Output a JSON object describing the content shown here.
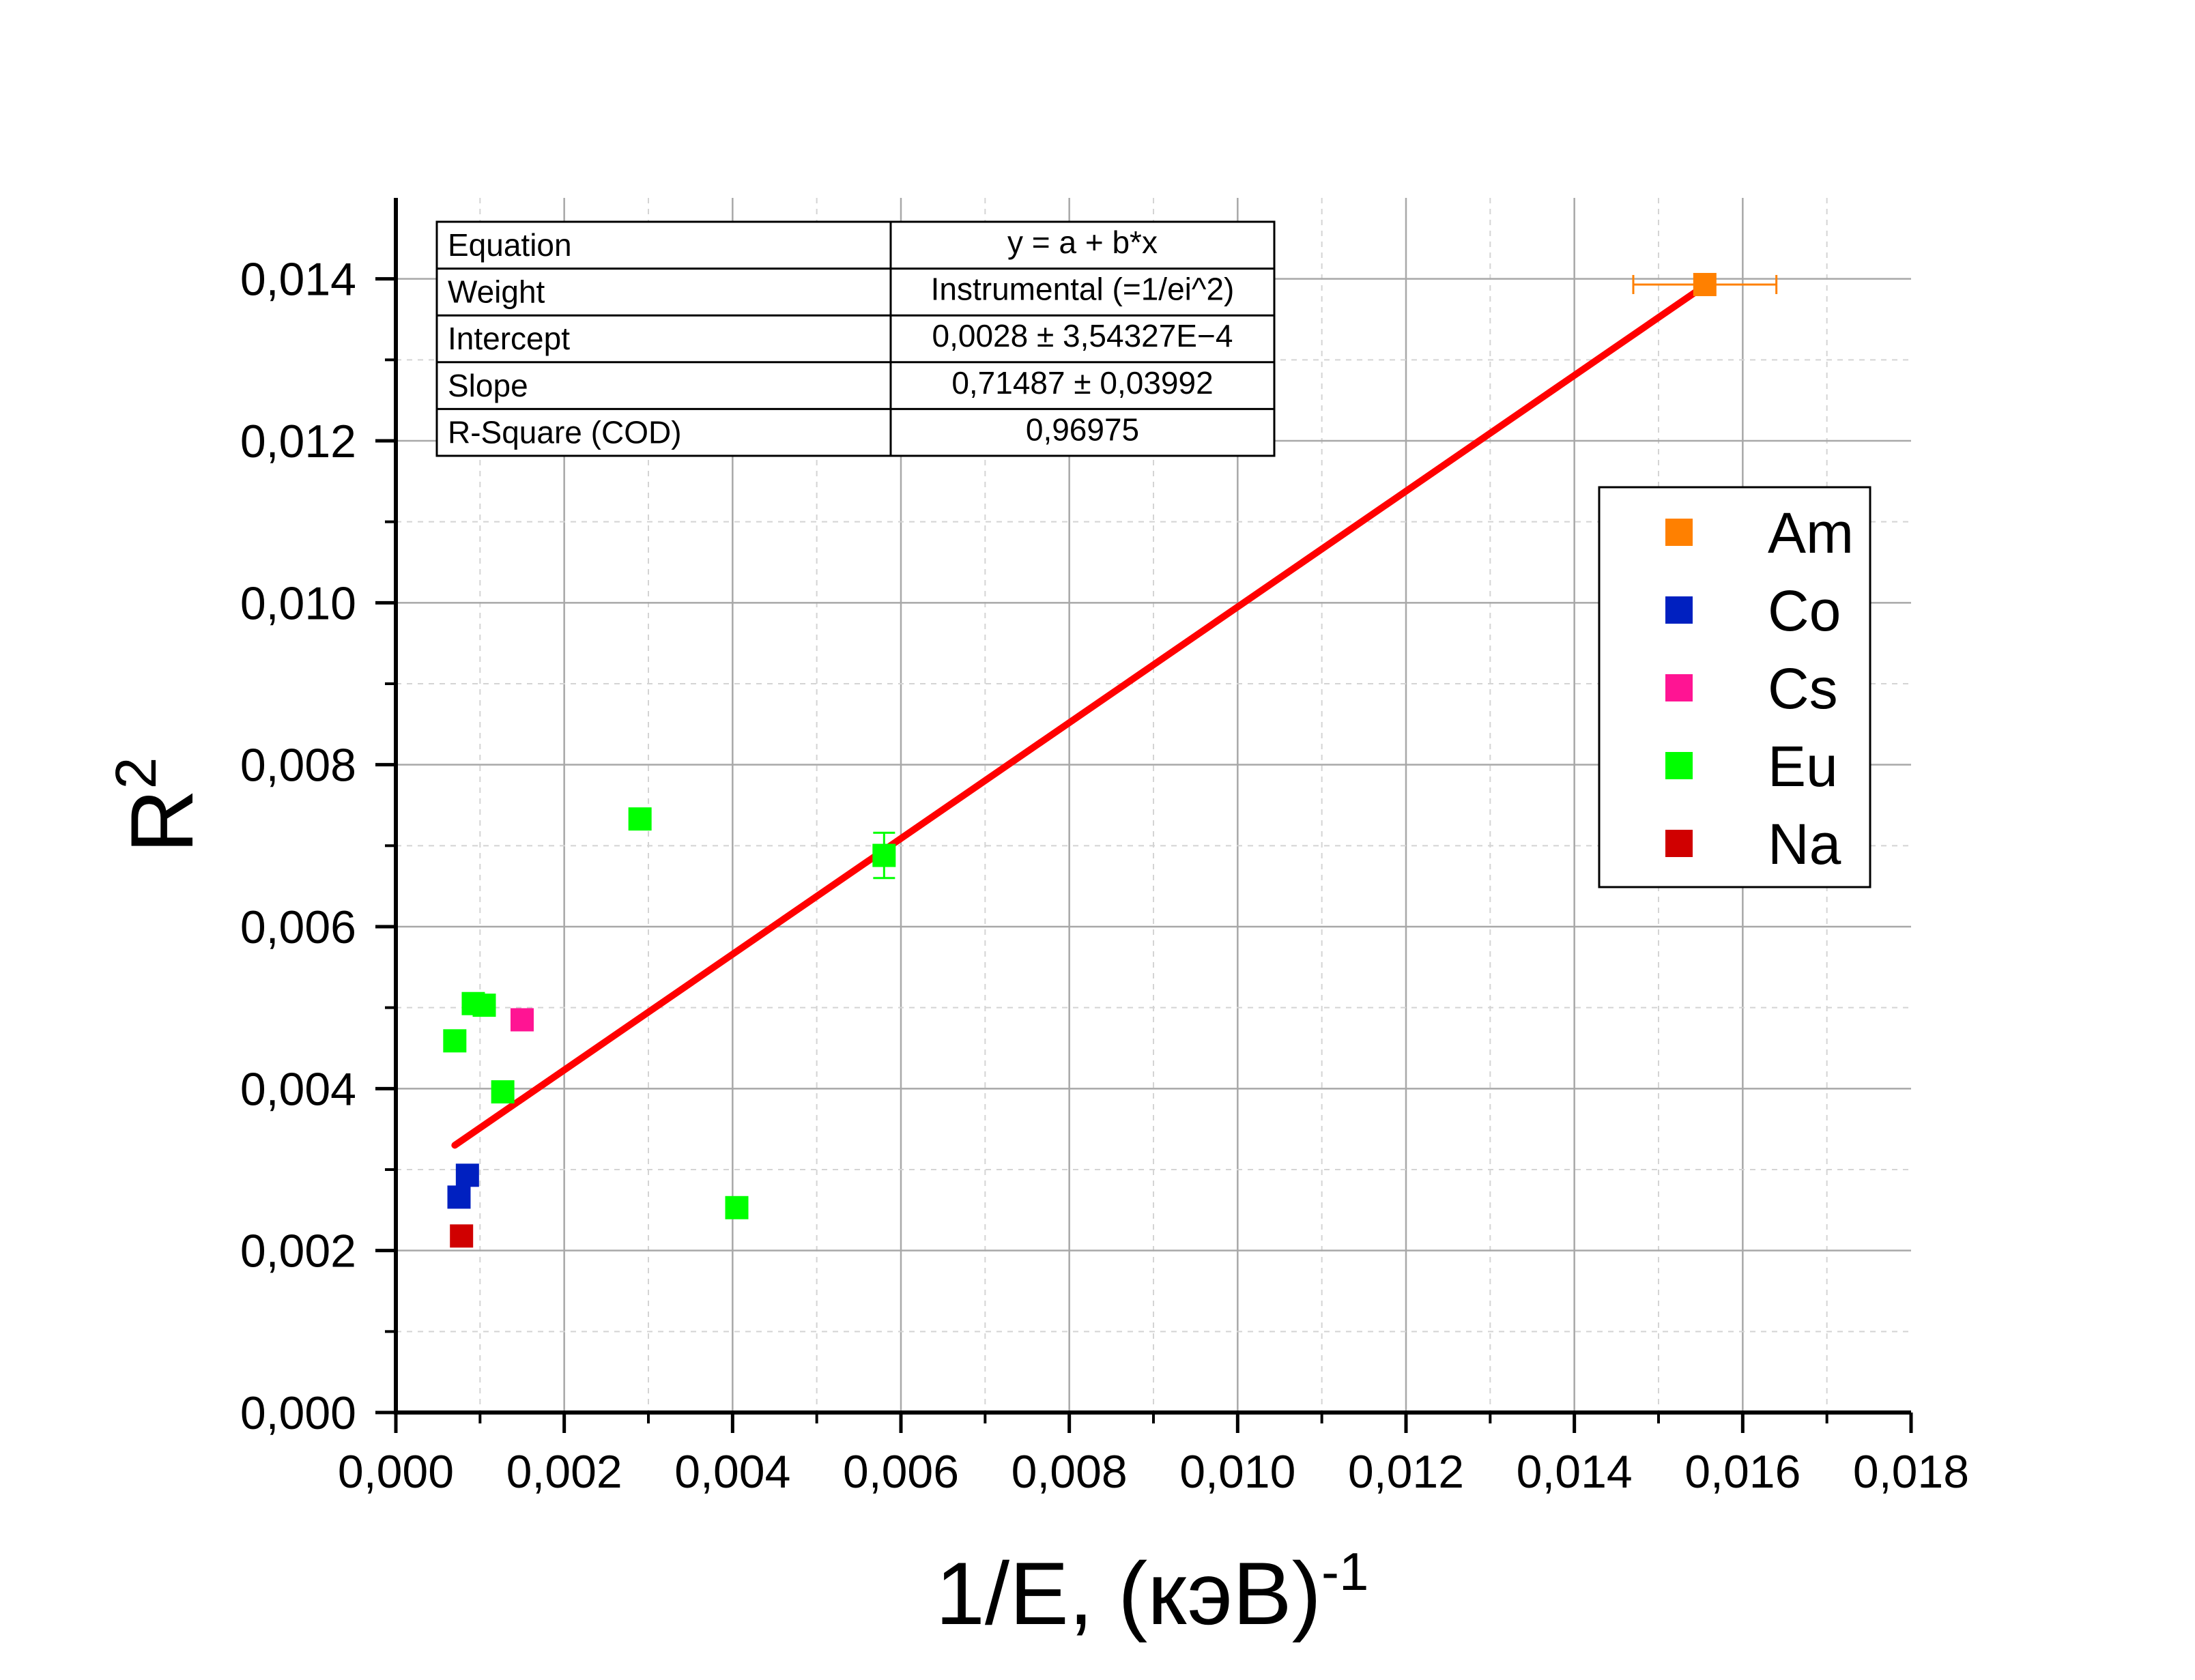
{
  "chart_data": {
    "type": "scatter",
    "xlabel": "1/E, (кэВ)",
    "xlabel_sup": "-1",
    "ylabel": "R",
    "ylabel_sup": "2",
    "xlim": [
      0,
      0.018
    ],
    "ylim": [
      0,
      0.015
    ],
    "x_ticks": [
      "0,000",
      "0,002",
      "0,004",
      "0,006",
      "0,008",
      "0,010",
      "0,012",
      "0,014",
      "0,016",
      "0,018"
    ],
    "y_ticks": [
      "0,000",
      "0,002",
      "0,004",
      "0,006",
      "0,008",
      "0,010",
      "0,012",
      "0,014"
    ],
    "grid": true,
    "legend_position": "right",
    "series": [
      {
        "name": "Am",
        "color": "#ff8000",
        "points": [
          {
            "x": 0.01555,
            "y": 0.01393,
            "xerr": 0.00085
          }
        ]
      },
      {
        "name": "Co",
        "color": "#0020c0",
        "points": [
          {
            "x": 0.00075,
            "y": 0.00266
          },
          {
            "x": 0.00085,
            "y": 0.00293
          }
        ]
      },
      {
        "name": "Cs",
        "color": "#ff1493",
        "points": [
          {
            "x": 0.0015,
            "y": 0.00485
          }
        ]
      },
      {
        "name": "Eu",
        "color": "#00ff00",
        "points": [
          {
            "x": 0.0007,
            "y": 0.00459
          },
          {
            "x": 0.00092,
            "y": 0.00505
          },
          {
            "x": 0.00105,
            "y": 0.00503
          },
          {
            "x": 0.00127,
            "y": 0.00396
          },
          {
            "x": 0.0029,
            "y": 0.00733
          },
          {
            "x": 0.00405,
            "y": 0.00253
          },
          {
            "x": 0.0058,
            "y": 0.00688,
            "yerr": 0.00028
          }
        ]
      },
      {
        "name": "Na",
        "color": "#d00000",
        "points": [
          {
            "x": 0.00078,
            "y": 0.00218
          }
        ]
      }
    ],
    "fit_line": {
      "color": "#ff0000",
      "x_start": 0.0007,
      "x_end": 0.01555,
      "intercept": 0.0028,
      "slope": 0.71487
    },
    "stats_table": [
      [
        "Equation",
        "y = a + b*x"
      ],
      [
        "Weight",
        "Instrumental (=1/ei^2)"
      ],
      [
        "Intercept",
        "0,0028 ± 3,54327E−4"
      ],
      [
        "Slope",
        "0,71487 ± 0,03992"
      ],
      [
        "R-Square (COD)",
        "0,96975"
      ]
    ]
  }
}
